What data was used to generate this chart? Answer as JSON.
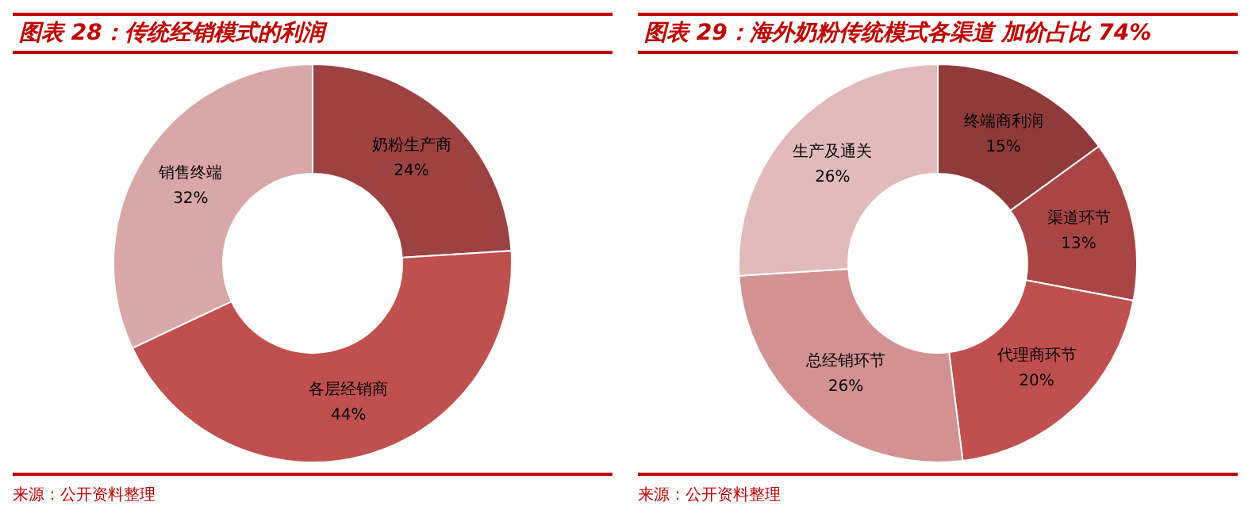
{
  "chart_data": [
    {
      "type": "donut",
      "title": "图表 28：传统经销模式的利润",
      "categories": [
        "奶粉生产商",
        "各层经销商",
        "销售终端"
      ],
      "values": [
        24,
        44,
        32
      ],
      "value_labels": [
        "24%",
        "44%",
        "32%"
      ],
      "colors": [
        "#9c4241",
        "#c0504d",
        "#d9a7a7"
      ],
      "annotations": [
        "来源：公开资料整理"
      ]
    },
    {
      "type": "donut",
      "title": "图表 29：海外奶粉传统模式各渠道 加价占比 74%",
      "categories": [
        "终端商利润",
        "渠道环节",
        "代理商环节",
        "总经销环节",
        "生产及通关"
      ],
      "values": [
        15,
        13,
        20,
        26,
        26
      ],
      "value_labels": [
        "15%",
        "13%",
        "20%",
        "26%",
        "26%"
      ],
      "colors": [
        "#8e3b3a",
        "#a94644",
        "#c0504d",
        "#d29292",
        "#e2baba"
      ],
      "annotations": [
        "来源：公开资料整理"
      ]
    }
  ]
}
